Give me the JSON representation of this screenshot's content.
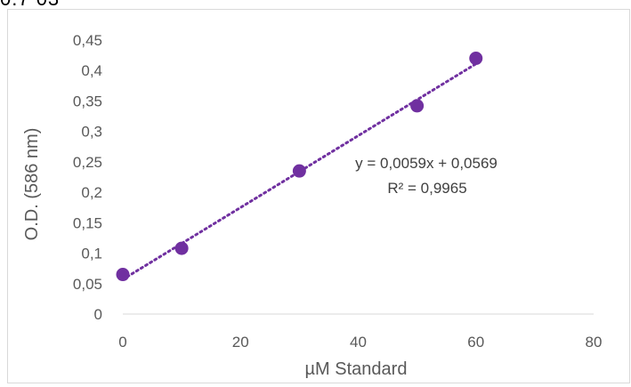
{
  "top_fragment": "0.7 03",
  "chart_data": {
    "type": "scatter",
    "title": "",
    "xlabel": "µM Standard",
    "ylabel": "O.D. (586 nm)",
    "xlim": [
      0,
      80
    ],
    "ylim": [
      0,
      0.45
    ],
    "x_ticks": [
      0,
      20,
      40,
      60,
      80
    ],
    "y_ticks": [
      0,
      0.05,
      0.1,
      0.15,
      0.2,
      0.25,
      0.3,
      0.35,
      0.4,
      0.45
    ],
    "x_tick_labels": [
      "0",
      "20",
      "40",
      "60",
      "80"
    ],
    "y_tick_labels": [
      "0",
      "0,05",
      "0,1",
      "0,15",
      "0,2",
      "0,25",
      "0,3",
      "0,35",
      "0,4",
      "0,45"
    ],
    "points": [
      {
        "x": 0,
        "y": 0.065
      },
      {
        "x": 10,
        "y": 0.108
      },
      {
        "x": 30,
        "y": 0.235
      },
      {
        "x": 50,
        "y": 0.342
      },
      {
        "x": 60,
        "y": 0.42
      }
    ],
    "trendline": {
      "slope": 0.0059,
      "intercept": 0.0569,
      "x_range": [
        0,
        60
      ],
      "style": "dotted"
    },
    "equation_label": "y = 0,0059x + 0,0569",
    "r2_label": "R² = 0,9965",
    "grid": false,
    "legend": "none",
    "colors": {
      "marker": "#7030a0",
      "axis": "#d9d9d9",
      "text": "#595959"
    }
  }
}
